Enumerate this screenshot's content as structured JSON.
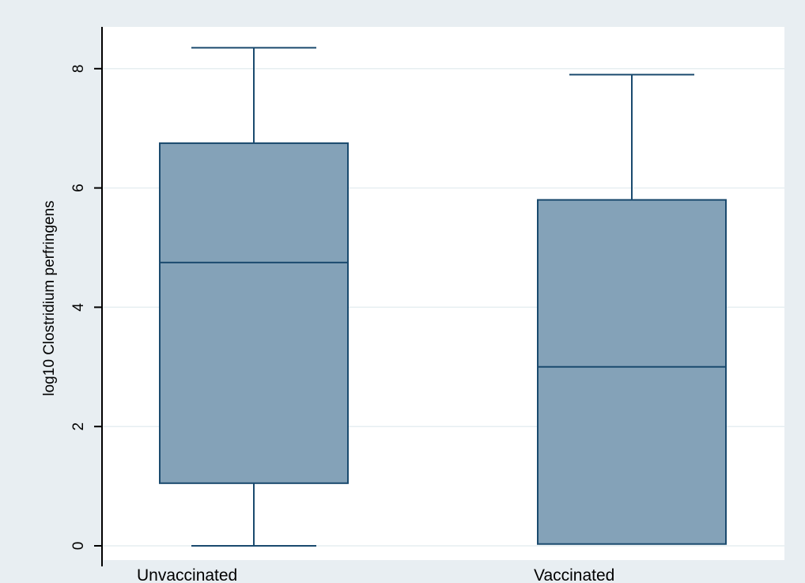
{
  "chart_data": {
    "type": "boxplot",
    "title": "",
    "xlabel": "",
    "ylabel": "log10 Clostridium perfringens",
    "ylim": [
      0,
      8.4
    ],
    "yticks": [
      0,
      2,
      4,
      6,
      8
    ],
    "ytick_labels": [
      "0",
      "2",
      "4",
      "6",
      "8"
    ],
    "grid": true,
    "categories": [
      "Unvaccinated",
      "Vaccinated"
    ],
    "series": [
      {
        "category": "Unvaccinated",
        "min": 0,
        "q1": 1.05,
        "median": 4.75,
        "q3": 6.75,
        "max": 8.35
      },
      {
        "category": "Vaccinated",
        "min": 0.03,
        "q1": 0.03,
        "median": 3.0,
        "q3": 5.8,
        "max": 7.9
      }
    ],
    "colors": {
      "background": "#e8eef2",
      "plot_background": "#ffffff",
      "box_fill": "#84a2b8",
      "box_stroke": "#1a4a6e",
      "grid": "#e6eef1",
      "axis": "#000000"
    }
  }
}
